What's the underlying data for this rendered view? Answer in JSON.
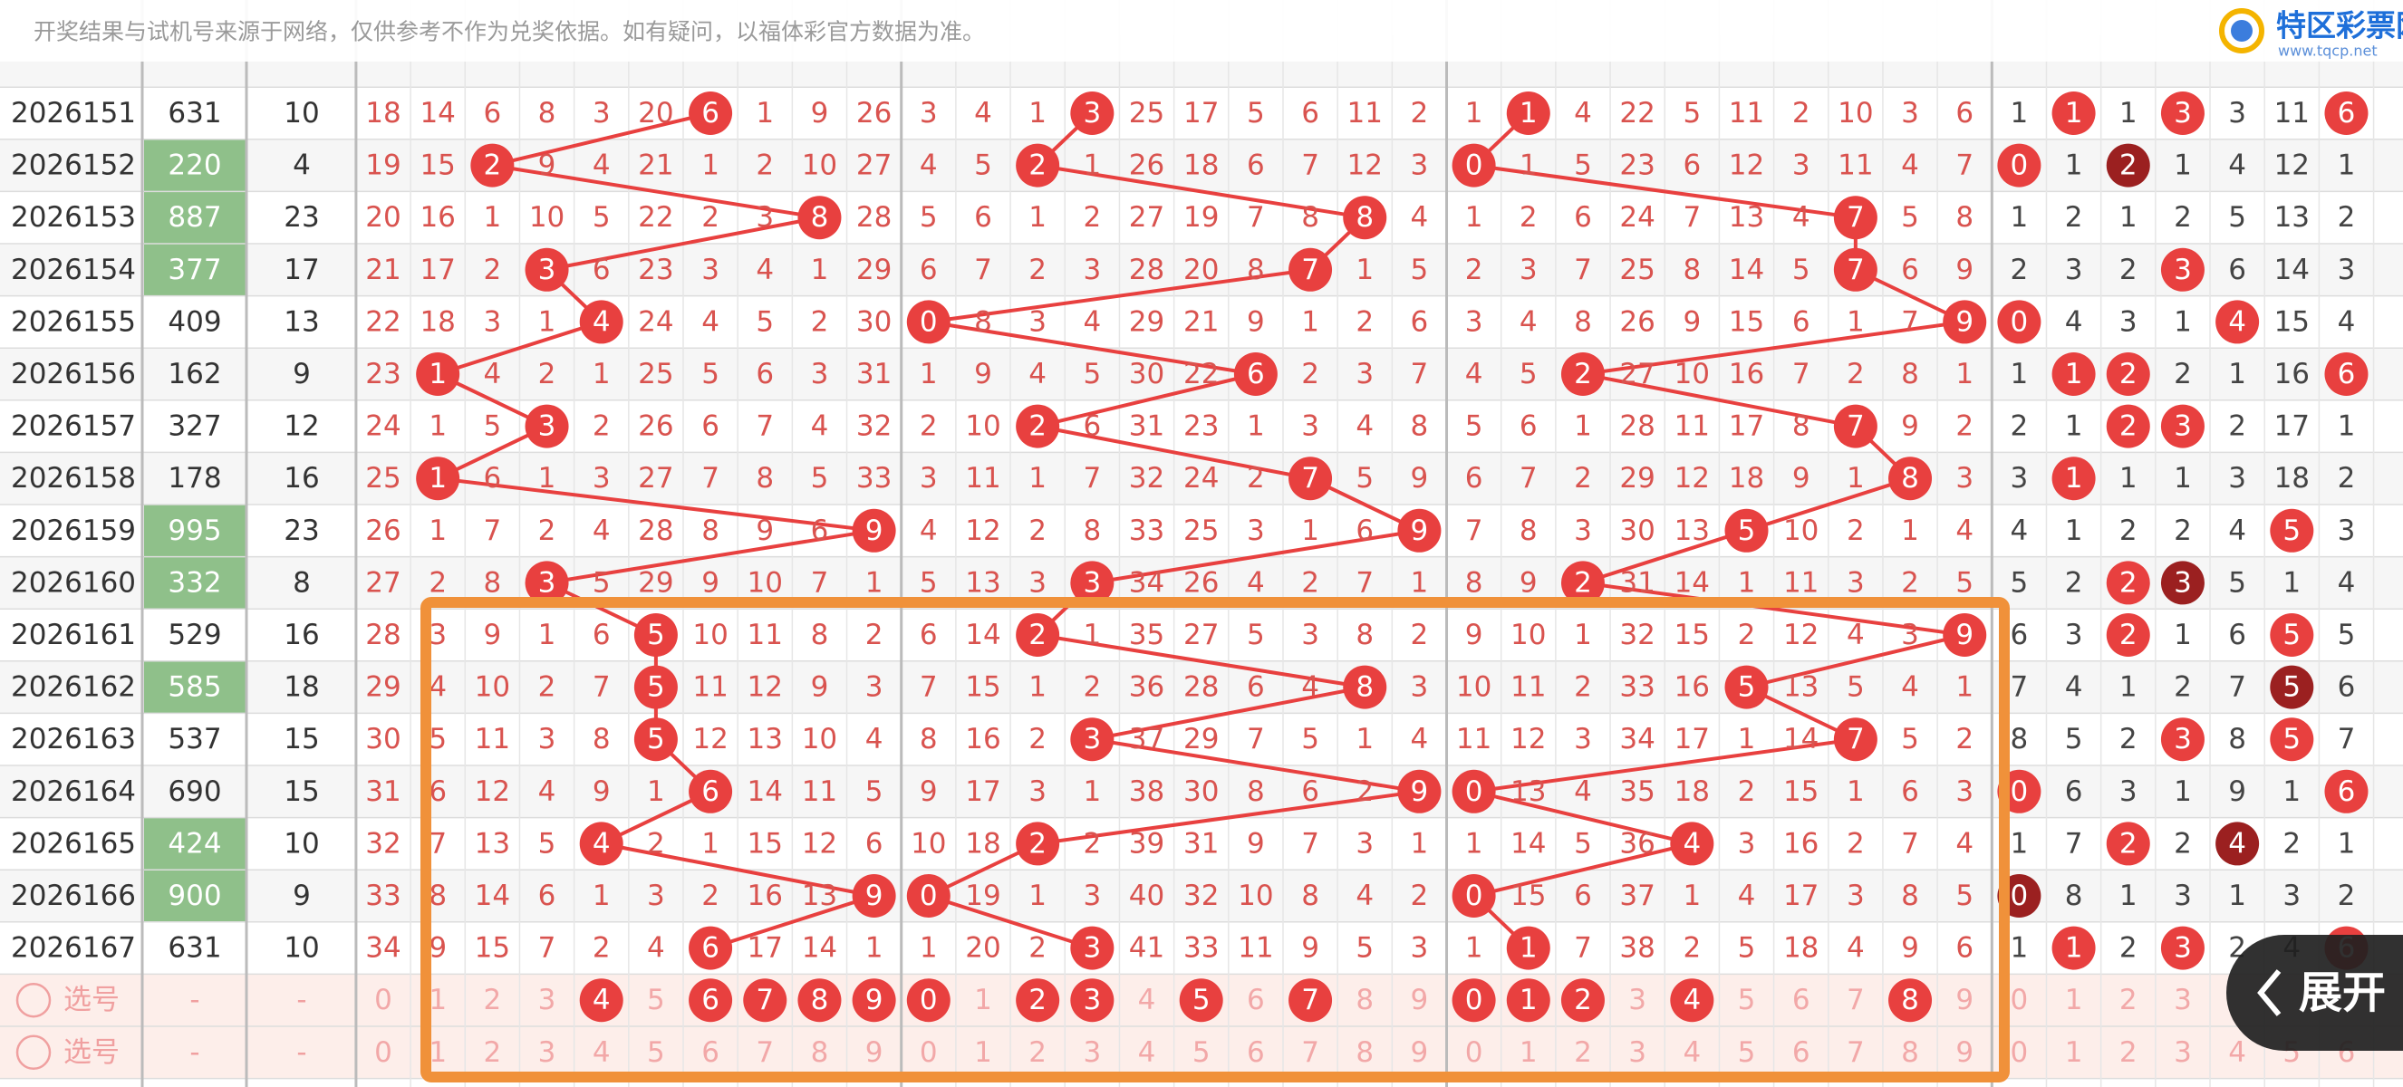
{
  "notice": "开奖结果与试机号来源于网络，仅供参考不作为兑奖依据。如有疑问，以福体彩官方数据为准。",
  "logo": {
    "name": "特区彩票网",
    "url": "www.tqcp.net"
  },
  "button": "展开",
  "rows": [
    {
      "period": "2026151",
      "number": "631",
      "sum": 10,
      "highlight": false,
      "cells": [
        18,
        14,
        6,
        8,
        3,
        20,
        6,
        1,
        9,
        26,
        3,
        4,
        1,
        3,
        25,
        17,
        5,
        6,
        11,
        2,
        1,
        1,
        4,
        22,
        5,
        11,
        2,
        10,
        3,
        6
      ],
      "right": [
        1,
        1,
        1,
        3,
        3,
        11,
        6
      ],
      "right_hits": [
        1,
        3,
        6
      ],
      "right_dark": []
    },
    {
      "period": "2026152",
      "number": "220",
      "sum": 4,
      "highlight": true,
      "cells": [
        19,
        15,
        2,
        9,
        4,
        21,
        1,
        2,
        10,
        27,
        4,
        5,
        2,
        1,
        26,
        18,
        6,
        7,
        12,
        3,
        0,
        1,
        5,
        23,
        6,
        12,
        3,
        11,
        4,
        7
      ],
      "right": [
        0,
        1,
        2,
        1,
        4,
        12,
        1
      ],
      "right_hits": [
        0
      ],
      "right_dark": [
        2
      ]
    },
    {
      "period": "2026153",
      "number": "887",
      "sum": 23,
      "highlight": true,
      "cells": [
        20,
        16,
        1,
        10,
        5,
        22,
        2,
        3,
        8,
        28,
        5,
        6,
        1,
        2,
        27,
        19,
        7,
        8,
        8,
        4,
        1,
        2,
        6,
        24,
        7,
        13,
        4,
        7,
        5,
        8
      ],
      "right": [
        1,
        2,
        1,
        2,
        5,
        13,
        2
      ],
      "right_hits": [],
      "right_dark": []
    },
    {
      "period": "2026154",
      "number": "377",
      "sum": 17,
      "highlight": true,
      "cells": [
        21,
        17,
        2,
        3,
        6,
        23,
        3,
        4,
        1,
        29,
        6,
        7,
        2,
        3,
        28,
        20,
        8,
        7,
        1,
        5,
        2,
        3,
        7,
        25,
        8,
        14,
        5,
        7,
        6,
        9
      ],
      "right": [
        2,
        3,
        2,
        3,
        6,
        14,
        3
      ],
      "right_hits": [
        3
      ],
      "right_dark": []
    },
    {
      "period": "2026155",
      "number": "409",
      "sum": 13,
      "highlight": false,
      "cells": [
        22,
        18,
        3,
        1,
        4,
        24,
        4,
        5,
        2,
        30,
        0,
        8,
        3,
        4,
        29,
        21,
        9,
        1,
        2,
        6,
        3,
        4,
        8,
        26,
        9,
        15,
        6,
        1,
        7,
        9
      ],
      "right": [
        0,
        4,
        3,
        1,
        4,
        15,
        4
      ],
      "right_hits": [
        0,
        4
      ],
      "right_dark": []
    },
    {
      "period": "2026156",
      "number": "162",
      "sum": 9,
      "highlight": false,
      "cells": [
        23,
        1,
        4,
        2,
        1,
        25,
        5,
        6,
        3,
        31,
        1,
        9,
        4,
        5,
        30,
        22,
        6,
        2,
        3,
        7,
        4,
        5,
        2,
        27,
        10,
        16,
        7,
        2,
        8,
        1
      ],
      "right": [
        1,
        1,
        2,
        2,
        1,
        16,
        6
      ],
      "right_hits": [
        1,
        2,
        6
      ],
      "right_dark": []
    },
    {
      "period": "2026157",
      "number": "327",
      "sum": 12,
      "highlight": false,
      "cells": [
        24,
        1,
        5,
        3,
        2,
        26,
        6,
        7,
        4,
        32,
        2,
        10,
        2,
        6,
        31,
        23,
        1,
        3,
        4,
        8,
        5,
        6,
        1,
        28,
        11,
        17,
        8,
        7,
        9,
        2
      ],
      "right": [
        2,
        1,
        2,
        3,
        2,
        17,
        1
      ],
      "right_hits": [
        2,
        3
      ],
      "right_dark": []
    },
    {
      "period": "2026158",
      "number": "178",
      "sum": 16,
      "highlight": false,
      "cells": [
        25,
        1,
        6,
        1,
        3,
        27,
        7,
        8,
        5,
        33,
        3,
        11,
        1,
        7,
        32,
        24,
        2,
        7,
        5,
        9,
        6,
        7,
        2,
        29,
        12,
        18,
        9,
        1,
        8,
        3
      ],
      "right": [
        3,
        1,
        1,
        1,
        3,
        18,
        2
      ],
      "right_hits": [
        1
      ],
      "right_dark": []
    },
    {
      "period": "2026159",
      "number": "995",
      "sum": 23,
      "highlight": true,
      "cells": [
        26,
        1,
        7,
        2,
        4,
        28,
        8,
        9,
        6,
        9,
        4,
        12,
        2,
        8,
        33,
        25,
        3,
        1,
        6,
        9,
        7,
        8,
        3,
        30,
        13,
        5,
        10,
        2,
        1,
        4
      ],
      "right": [
        4,
        1,
        2,
        2,
        4,
        5,
        3
      ],
      "right_hits": [
        5
      ],
      "right_dark": []
    },
    {
      "period": "2026160",
      "number": "332",
      "sum": 8,
      "highlight": true,
      "cells": [
        27,
        2,
        8,
        3,
        5,
        29,
        9,
        10,
        7,
        1,
        5,
        13,
        3,
        3,
        34,
        26,
        4,
        2,
        7,
        1,
        8,
        9,
        2,
        31,
        14,
        1,
        11,
        3,
        2,
        5
      ],
      "right": [
        5,
        2,
        2,
        3,
        5,
        1,
        4
      ],
      "right_hits": [
        2
      ],
      "right_dark": [
        3
      ]
    },
    {
      "period": "2026161",
      "number": "529",
      "sum": 16,
      "highlight": false,
      "cells": [
        28,
        3,
        9,
        1,
        6,
        5,
        10,
        11,
        8,
        2,
        6,
        14,
        2,
        1,
        35,
        27,
        5,
        3,
        8,
        2,
        9,
        10,
        1,
        32,
        15,
        2,
        12,
        4,
        3,
        9
      ],
      "right": [
        6,
        3,
        2,
        1,
        6,
        5,
        5
      ],
      "right_hits": [
        2,
        5
      ],
      "right_dark": []
    },
    {
      "period": "2026162",
      "number": "585",
      "sum": 18,
      "highlight": true,
      "cells": [
        29,
        4,
        10,
        2,
        7,
        5,
        11,
        12,
        9,
        3,
        7,
        15,
        1,
        2,
        36,
        28,
        6,
        4,
        8,
        3,
        10,
        11,
        2,
        33,
        16,
        5,
        13,
        5,
        4,
        1
      ],
      "right": [
        7,
        4,
        1,
        2,
        7,
        5,
        6
      ],
      "right_hits": [],
      "right_dark": [
        5
      ]
    },
    {
      "period": "2026163",
      "number": "537",
      "sum": 15,
      "highlight": false,
      "cells": [
        30,
        5,
        11,
        3,
        8,
        5,
        12,
        13,
        10,
        4,
        8,
        16,
        2,
        3,
        37,
        29,
        7,
        5,
        1,
        4,
        11,
        12,
        3,
        34,
        17,
        1,
        14,
        7,
        5,
        2
      ],
      "right": [
        8,
        5,
        2,
        3,
        8,
        5,
        7
      ],
      "right_hits": [
        3,
        5
      ],
      "right_dark": []
    },
    {
      "period": "2026164",
      "number": "690",
      "sum": 15,
      "highlight": false,
      "cells": [
        31,
        6,
        12,
        4,
        9,
        1,
        6,
        14,
        11,
        5,
        9,
        17,
        3,
        1,
        38,
        30,
        8,
        6,
        2,
        9,
        0,
        13,
        4,
        35,
        18,
        2,
        15,
        1,
        6,
        3
      ],
      "right": [
        0,
        6,
        3,
        1,
        9,
        1,
        6
      ],
      "right_hits": [
        0,
        6
      ],
      "right_dark": []
    },
    {
      "period": "2026165",
      "number": "424",
      "sum": 10,
      "highlight": true,
      "cells": [
        32,
        7,
        13,
        5,
        4,
        2,
        1,
        15,
        12,
        6,
        10,
        18,
        2,
        2,
        39,
        31,
        9,
        7,
        3,
        1,
        1,
        14,
        5,
        36,
        4,
        3,
        16,
        2,
        7,
        4
      ],
      "right": [
        1,
        7,
        2,
        2,
        4,
        2,
        1
      ],
      "right_hits": [
        2
      ],
      "right_dark": [
        4
      ]
    },
    {
      "period": "2026166",
      "number": "900",
      "sum": 9,
      "highlight": true,
      "cells": [
        33,
        8,
        14,
        6,
        1,
        3,
        2,
        16,
        13,
        9,
        0,
        19,
        1,
        3,
        40,
        32,
        10,
        8,
        4,
        2,
        0,
        15,
        6,
        37,
        1,
        4,
        17,
        3,
        8,
        5
      ],
      "right": [
        0,
        8,
        1,
        3,
        1,
        3,
        2
      ],
      "right_hits": [],
      "right_dark": [
        0
      ]
    },
    {
      "period": "2026167",
      "number": "631",
      "sum": 10,
      "highlight": false,
      "cells": [
        34,
        9,
        15,
        7,
        2,
        4,
        6,
        17,
        14,
        1,
        1,
        20,
        2,
        3,
        41,
        33,
        11,
        9,
        5,
        3,
        1,
        1,
        7,
        38,
        2,
        5,
        18,
        4,
        9,
        6
      ],
      "right": [
        1,
        1,
        2,
        3,
        2,
        4,
        6
      ],
      "right_hits": [
        1,
        3,
        6
      ],
      "right_dark": []
    }
  ],
  "selection": [
    {
      "label": "选号",
      "number": "-",
      "sum": "-",
      "cells": [
        0,
        1,
        2,
        3,
        4,
        5,
        6,
        7,
        8,
        9,
        0,
        1,
        2,
        3,
        4,
        5,
        6,
        7,
        8,
        9,
        0,
        1,
        2,
        3,
        4,
        5,
        6,
        7,
        8,
        9
      ],
      "selected": [
        4,
        6,
        7,
        8,
        9,
        10,
        12,
        13,
        15,
        17,
        20,
        21,
        22,
        24,
        28
      ],
      "right": [
        0,
        1,
        2,
        3
      ]
    },
    {
      "label": "选号",
      "number": "-",
      "sum": "-",
      "cells": [
        0,
        1,
        2,
        3,
        4,
        5,
        6,
        7,
        8,
        9,
        0,
        1,
        2,
        3,
        4,
        5,
        6,
        7,
        8,
        9,
        0,
        1,
        2,
        3,
        4,
        5,
        6,
        7,
        8,
        9
      ],
      "selected": [],
      "right": [
        0,
        1,
        2,
        3,
        4,
        5,
        6
      ]
    }
  ]
}
